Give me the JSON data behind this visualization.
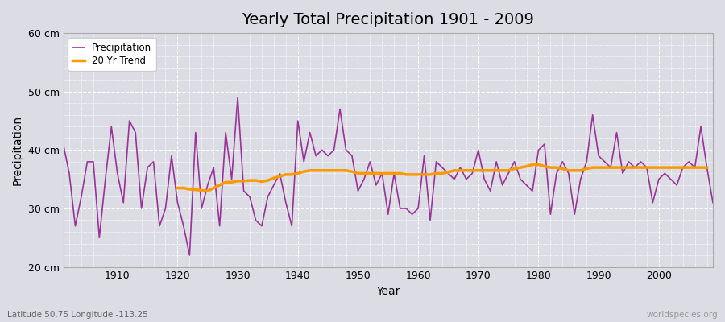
{
  "title": "Yearly Total Precipitation 1901 - 2009",
  "xlabel": "Year",
  "ylabel": "Precipitation",
  "subtitle": "Latitude 50.75 Longitude -113.25",
  "watermark": "worldspecies.org",
  "ylim": [
    20,
    60
  ],
  "yticks": [
    20,
    30,
    40,
    50,
    60
  ],
  "ytick_labels": [
    "20 cm",
    "30 cm",
    "40 cm",
    "50 cm",
    "60 cm"
  ],
  "xlim": [
    1901,
    2009
  ],
  "xticks": [
    1910,
    1920,
    1930,
    1940,
    1950,
    1960,
    1970,
    1980,
    1990,
    2000
  ],
  "fig_bg_color": "#dcdce4",
  "plot_bg_color": "#dcdce4",
  "precip_color": "#993399",
  "trend_color": "#ff9900",
  "legend_labels": [
    "Precipitation",
    "20 Yr Trend"
  ],
  "years": [
    1901,
    1902,
    1903,
    1904,
    1905,
    1906,
    1907,
    1908,
    1909,
    1910,
    1911,
    1912,
    1913,
    1914,
    1915,
    1916,
    1917,
    1918,
    1919,
    1920,
    1921,
    1922,
    1923,
    1924,
    1925,
    1926,
    1927,
    1928,
    1929,
    1930,
    1931,
    1932,
    1933,
    1934,
    1935,
    1936,
    1937,
    1938,
    1939,
    1940,
    1941,
    1942,
    1943,
    1944,
    1945,
    1946,
    1947,
    1948,
    1949,
    1950,
    1951,
    1952,
    1953,
    1954,
    1955,
    1956,
    1957,
    1958,
    1959,
    1960,
    1961,
    1962,
    1963,
    1964,
    1965,
    1966,
    1967,
    1968,
    1969,
    1970,
    1971,
    1972,
    1973,
    1974,
    1975,
    1976,
    1977,
    1978,
    1979,
    1980,
    1981,
    1982,
    1983,
    1984,
    1985,
    1986,
    1987,
    1988,
    1989,
    1990,
    1991,
    1992,
    1993,
    1994,
    1995,
    1996,
    1997,
    1998,
    1999,
    2000,
    2001,
    2002,
    2003,
    2004,
    2005,
    2006,
    2007,
    2008,
    2009
  ],
  "precipitation": [
    41,
    36,
    27,
    32,
    38,
    38,
    25,
    35,
    44,
    36,
    31,
    45,
    43,
    30,
    37,
    38,
    27,
    30,
    39,
    31,
    27,
    22,
    43,
    30,
    34,
    37,
    27,
    43,
    35,
    49,
    33,
    32,
    28,
    27,
    32,
    34,
    36,
    31,
    27,
    45,
    38,
    43,
    39,
    40,
    39,
    40,
    47,
    40,
    39,
    33,
    35,
    38,
    34,
    36,
    29,
    36,
    30,
    30,
    29,
    30,
    39,
    28,
    38,
    37,
    36,
    35,
    37,
    35,
    36,
    40,
    35,
    33,
    38,
    34,
    36,
    38,
    35,
    34,
    33,
    40,
    41,
    29,
    36,
    38,
    36,
    29,
    35,
    38,
    46,
    39,
    38,
    37,
    43,
    36,
    38,
    37,
    38,
    37,
    31,
    35,
    36,
    35,
    34,
    37,
    38,
    37,
    44,
    37,
    31
  ],
  "trend": [
    null,
    null,
    null,
    null,
    null,
    null,
    null,
    null,
    null,
    null,
    null,
    null,
    null,
    null,
    null,
    null,
    null,
    null,
    null,
    33.5,
    33.5,
    33.3,
    33.2,
    33.1,
    33.0,
    33.5,
    34.0,
    34.5,
    34.5,
    34.7,
    34.7,
    34.8,
    34.8,
    34.6,
    34.8,
    35.2,
    35.5,
    35.8,
    35.8,
    36.0,
    36.3,
    36.5,
    36.5,
    36.5,
    36.5,
    36.5,
    36.5,
    36.5,
    36.3,
    36.0,
    36.0,
    36.0,
    36.0,
    36.0,
    36.0,
    36.0,
    36.0,
    35.8,
    35.8,
    35.8,
    35.8,
    35.8,
    36.0,
    36.0,
    36.2,
    36.5,
    36.5,
    36.5,
    36.5,
    36.5,
    36.5,
    36.5,
    36.5,
    36.5,
    36.5,
    36.8,
    37.0,
    37.2,
    37.5,
    37.5,
    37.2,
    37.0,
    37.0,
    36.8,
    36.5,
    36.5,
    36.5,
    36.8,
    37.0,
    37.0,
    37.0,
    37.0,
    37.0,
    37.0,
    37.0,
    37.0,
    37.0,
    37.0,
    37.0,
    37.0,
    37.0,
    37.0,
    37.0,
    37.0,
    37.0,
    37.0,
    37.0,
    37.0,
    null
  ]
}
